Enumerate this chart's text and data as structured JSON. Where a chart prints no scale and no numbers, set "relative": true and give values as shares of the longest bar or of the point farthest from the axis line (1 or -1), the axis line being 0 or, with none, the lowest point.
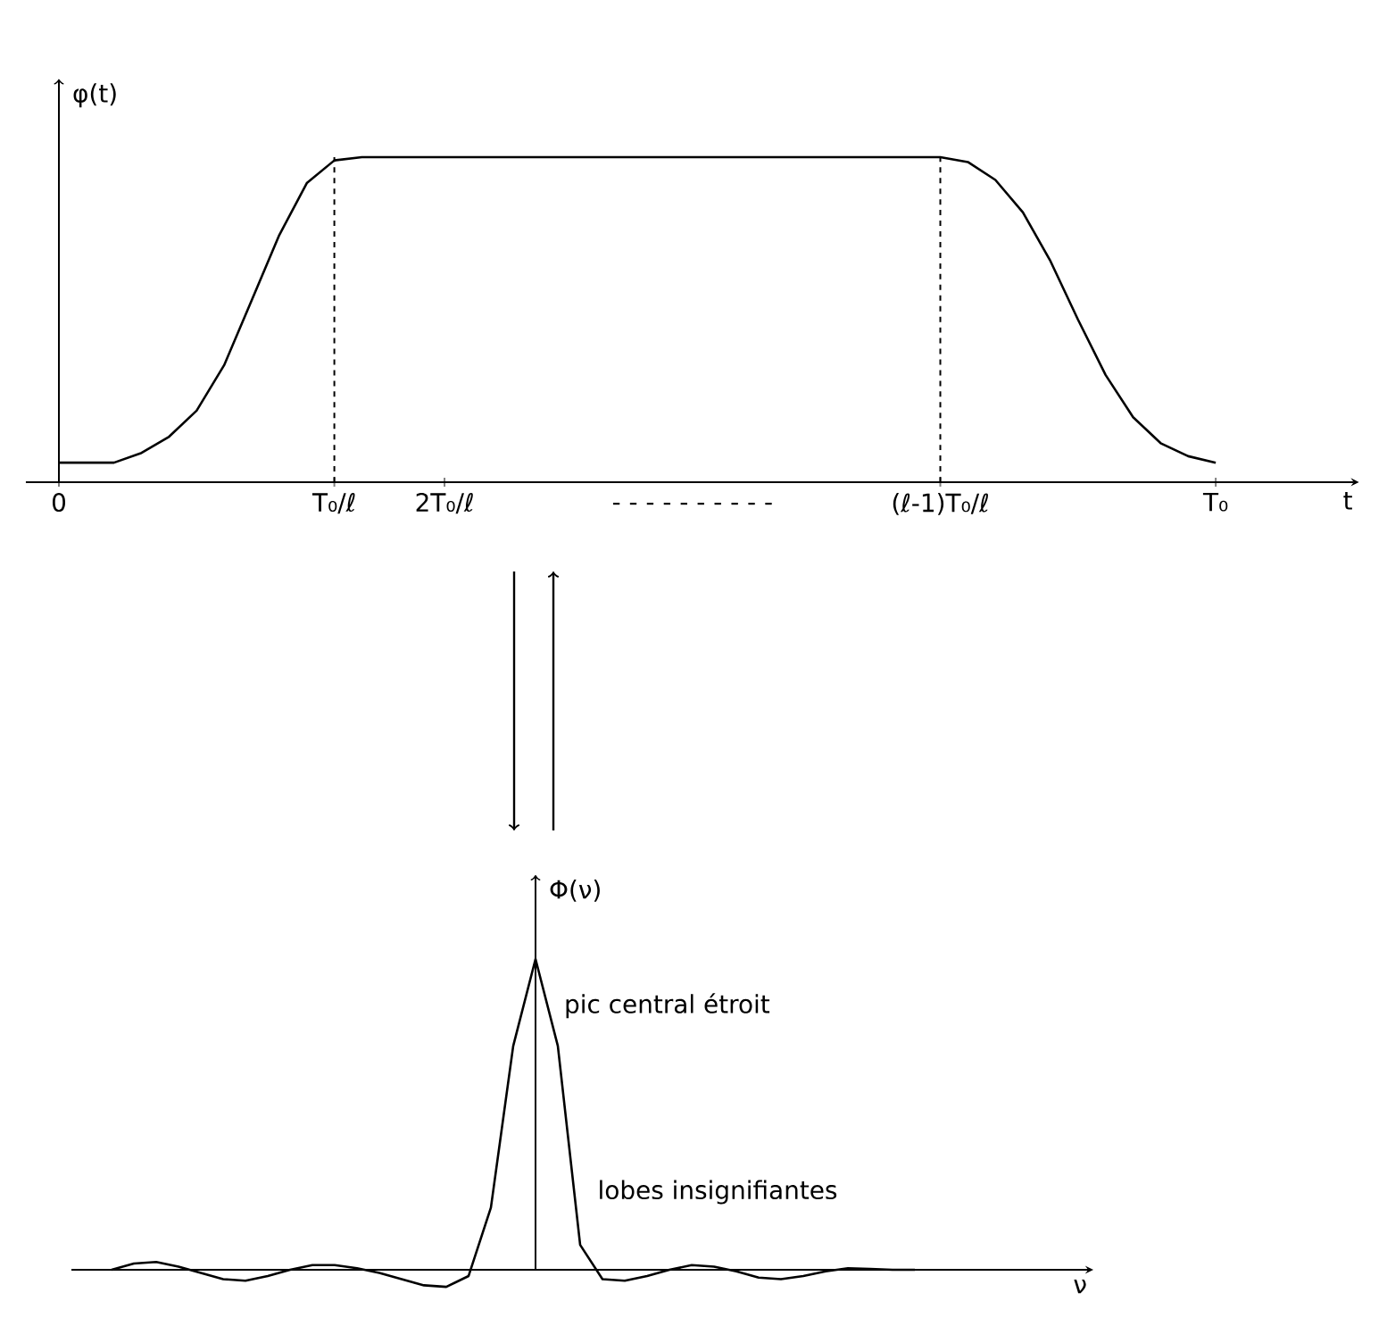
{
  "chart_data": [
    {
      "type": "line",
      "relative": true,
      "xlabel": "t",
      "ylabel": "φ(t)",
      "categories": [
        "0",
        null,
        null,
        null,
        null,
        null,
        null,
        null,
        null,
        null,
        "T₀/ℓ",
        null,
        null,
        null,
        "2T₀/ℓ",
        null,
        null,
        null,
        null,
        null,
        null,
        null,
        null,
        null,
        null,
        null,
        null,
        null,
        null,
        null,
        null,
        null,
        "(ℓ-1)T₀/ℓ",
        null,
        null,
        null,
        null,
        null,
        null,
        null,
        null,
        null,
        "T₀"
      ],
      "ref_lines": [
        {
          "axis": "x",
          "value": "T₀/ℓ",
          "line_style": "dashed"
        },
        {
          "axis": "x",
          "value": "(ℓ-1)T₀/ℓ",
          "line_style": "dashed"
        }
      ],
      "annotations": [
        "- - - - - - - - - -"
      ],
      "series": [
        {
          "color": "#000000",
          "values": [
            0.06,
            0.06,
            0.06,
            0.09,
            0.14,
            0.22,
            0.36,
            0.56,
            0.76,
            0.92,
            0.99,
            1,
            1,
            1,
            1,
            1,
            1,
            1,
            1,
            1,
            1,
            1,
            1,
            1,
            1,
            1,
            1,
            1,
            1,
            1,
            1,
            1,
            1,
            0.985,
            0.93,
            0.83,
            0.68,
            0.5,
            0.33,
            0.2,
            0.12,
            0.08,
            0.06
          ]
        }
      ]
    },
    {
      "type": "line",
      "relative": true,
      "xlabel": "ν",
      "ylabel": "Φ(ν)",
      "categories": [
        null,
        null,
        null,
        null,
        null,
        null,
        null,
        null,
        null,
        null,
        null,
        null,
        null,
        null,
        null,
        null,
        null,
        null,
        null,
        null,
        null,
        null,
        null,
        null,
        null,
        null,
        null,
        null,
        null,
        null,
        null,
        null,
        null,
        null,
        null,
        null,
        null
      ],
      "annotations": [
        "pic central étroit",
        "lobes insignifiantes"
      ],
      "series": [
        {
          "color": "#000000",
          "values": [
            0.0,
            0.02,
            0.025,
            0.01,
            -0.01,
            -0.03,
            -0.035,
            -0.02,
            0.0,
            0.015,
            0.015,
            0.005,
            -0.01,
            -0.03,
            -0.05,
            -0.055,
            -0.02,
            0.2,
            0.72,
            1,
            0.72,
            0.08,
            -0.03,
            -0.035,
            -0.02,
            0.0,
            0.015,
            0.01,
            -0.005,
            -0.025,
            -0.03,
            -0.02,
            -0.005,
            0.005,
            0.003,
            0.0,
            0.0
          ]
        }
      ]
    }
  ]
}
